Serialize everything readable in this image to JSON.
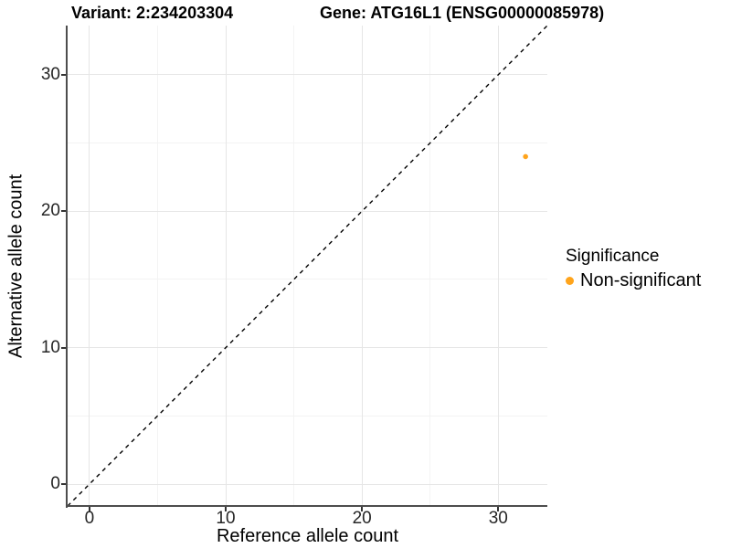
{
  "chart_data": {
    "type": "scatter",
    "titles": {
      "variant": "Variant: 2:234203304",
      "gene": "Gene: ATG16L1 (ENSG00000085978)"
    },
    "xlabel": "Reference allele count",
    "ylabel": "Alternative allele count",
    "xlim": [
      -1.6,
      33.6
    ],
    "ylim": [
      -1.6,
      33.6
    ],
    "x_major_ticks": [
      0,
      10,
      20,
      30
    ],
    "y_major_ticks": [
      0,
      10,
      20,
      30
    ],
    "x_minor_ticks": [
      5,
      15,
      25
    ],
    "y_minor_ticks": [
      5,
      15,
      25
    ],
    "grid": "major+minor, very light, on white background",
    "identity_line": {
      "equation": "y = x",
      "style": "dashed",
      "color": "#000000"
    },
    "series": [
      {
        "name": "Non-significant",
        "color": "#FFA41B",
        "points": [
          {
            "x": 32,
            "y": 24
          }
        ]
      }
    ],
    "legend": {
      "title": "Significance",
      "position": "right",
      "items": [
        {
          "label": "Non-significant",
          "color": "#FFA41B"
        }
      ]
    },
    "style": {
      "point_color": "#FFA41B",
      "axis_line_color": "#4d4d4d",
      "tick_color": "#333333",
      "grid_major_color": "#e6e6e6",
      "grid_minor_color": "#f3f3f3"
    }
  }
}
